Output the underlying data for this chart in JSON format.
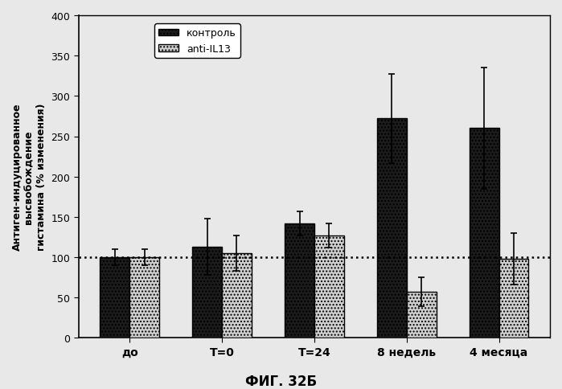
{
  "categories": [
    "до",
    "T=0",
    "T=24",
    "8 недель",
    "4 месяца"
  ],
  "control_values": [
    100,
    113,
    142,
    272,
    260
  ],
  "antiIL13_values": [
    100,
    105,
    127,
    57,
    98
  ],
  "control_errors": [
    10,
    35,
    15,
    55,
    75
  ],
  "antiIL13_errors": [
    10,
    22,
    15,
    18,
    32
  ],
  "control_color": "#1c1c1c",
  "antiIL13_color": "#d0d0d0",
  "hatch_control": "....",
  "hatch_antiIL13": "....",
  "ylabel_text": "Антиген-индуцированное\nвысвобождение\nгистамина (% изменения)",
  "legend_control": "контроль",
  "legend_antiIL13": "anti-IL13",
  "dotted_line_y": 100,
  "ylim": [
    0,
    400
  ],
  "yticks": [
    0,
    50,
    100,
    150,
    200,
    250,
    300,
    350,
    400
  ],
  "figure_caption": "ФИГ. 32Б",
  "bg_color": "#e8e8e8",
  "plot_bg_color": "#e8e8e8",
  "bar_width": 0.32
}
